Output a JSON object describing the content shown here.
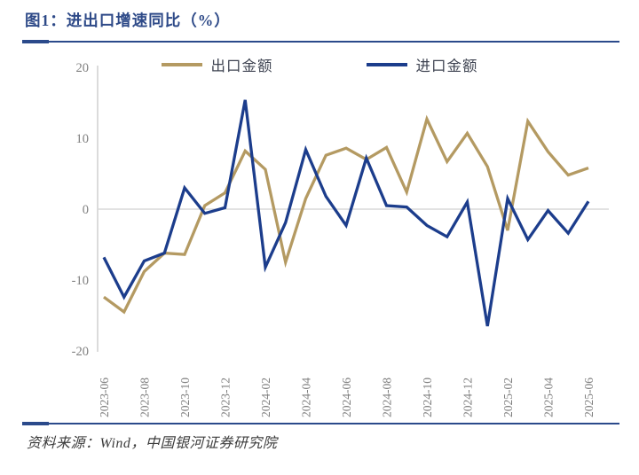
{
  "header": {
    "title": "图1：进出口增速同比（%）"
  },
  "footer": {
    "source": "资料来源：Wind，中国银河证券研究院"
  },
  "colors": {
    "title": "#2E4A88",
    "rule": "#2B4A8B",
    "footer_text": "#3C3C3C",
    "legend_text": "#3F4452",
    "axis_label": "#7F7F7F",
    "axis_line": "#CCCCCC",
    "grid_line": "#D8D8D8",
    "background": "#FFFFFF",
    "export_line": "#B49A62",
    "import_line": "#1C3D8C"
  },
  "chart_data": {
    "type": "line",
    "title": "图1：进出口增速同比（%）",
    "xlabel": "",
    "ylabel": "",
    "ylim": [
      -20,
      20
    ],
    "yticks": [
      20,
      10,
      0,
      -10,
      -20
    ],
    "grid": "zero-line-only",
    "legend_position": "top-center",
    "x_tick_step": 2,
    "x": [
      "2023-06",
      "2023-07",
      "2023-08",
      "2023-09",
      "2023-10",
      "2023-11",
      "2023-12",
      "2024-01",
      "2024-02",
      "2024-03",
      "2024-04",
      "2024-05",
      "2024-06",
      "2024-07",
      "2024-08",
      "2024-09",
      "2024-10",
      "2024-11",
      "2024-12",
      "2025-01",
      "2025-02",
      "2025-03",
      "2025-04",
      "2025-05",
      "2025-06"
    ],
    "series": [
      {
        "name": "出口金额",
        "color": "#B49A62",
        "values": [
          -12.4,
          -14.5,
          -8.8,
          -6.2,
          -6.4,
          0.5,
          2.3,
          8.2,
          5.6,
          -7.5,
          1.5,
          7.6,
          8.6,
          7.0,
          8.7,
          2.4,
          12.7,
          6.7,
          10.7,
          6.0,
          -3.0,
          12.4,
          8.1,
          4.8,
          5.8
        ]
      },
      {
        "name": "进口金额",
        "color": "#1C3D8C",
        "values": [
          -6.8,
          -12.4,
          -7.3,
          -6.2,
          3.0,
          -0.6,
          0.2,
          15.4,
          -8.2,
          -1.9,
          8.4,
          1.8,
          -2.3,
          7.2,
          0.5,
          0.3,
          -2.3,
          -3.9,
          1.0,
          -16.5,
          1.5,
          -4.3,
          -0.2,
          -3.4,
          1.1
        ]
      }
    ]
  }
}
